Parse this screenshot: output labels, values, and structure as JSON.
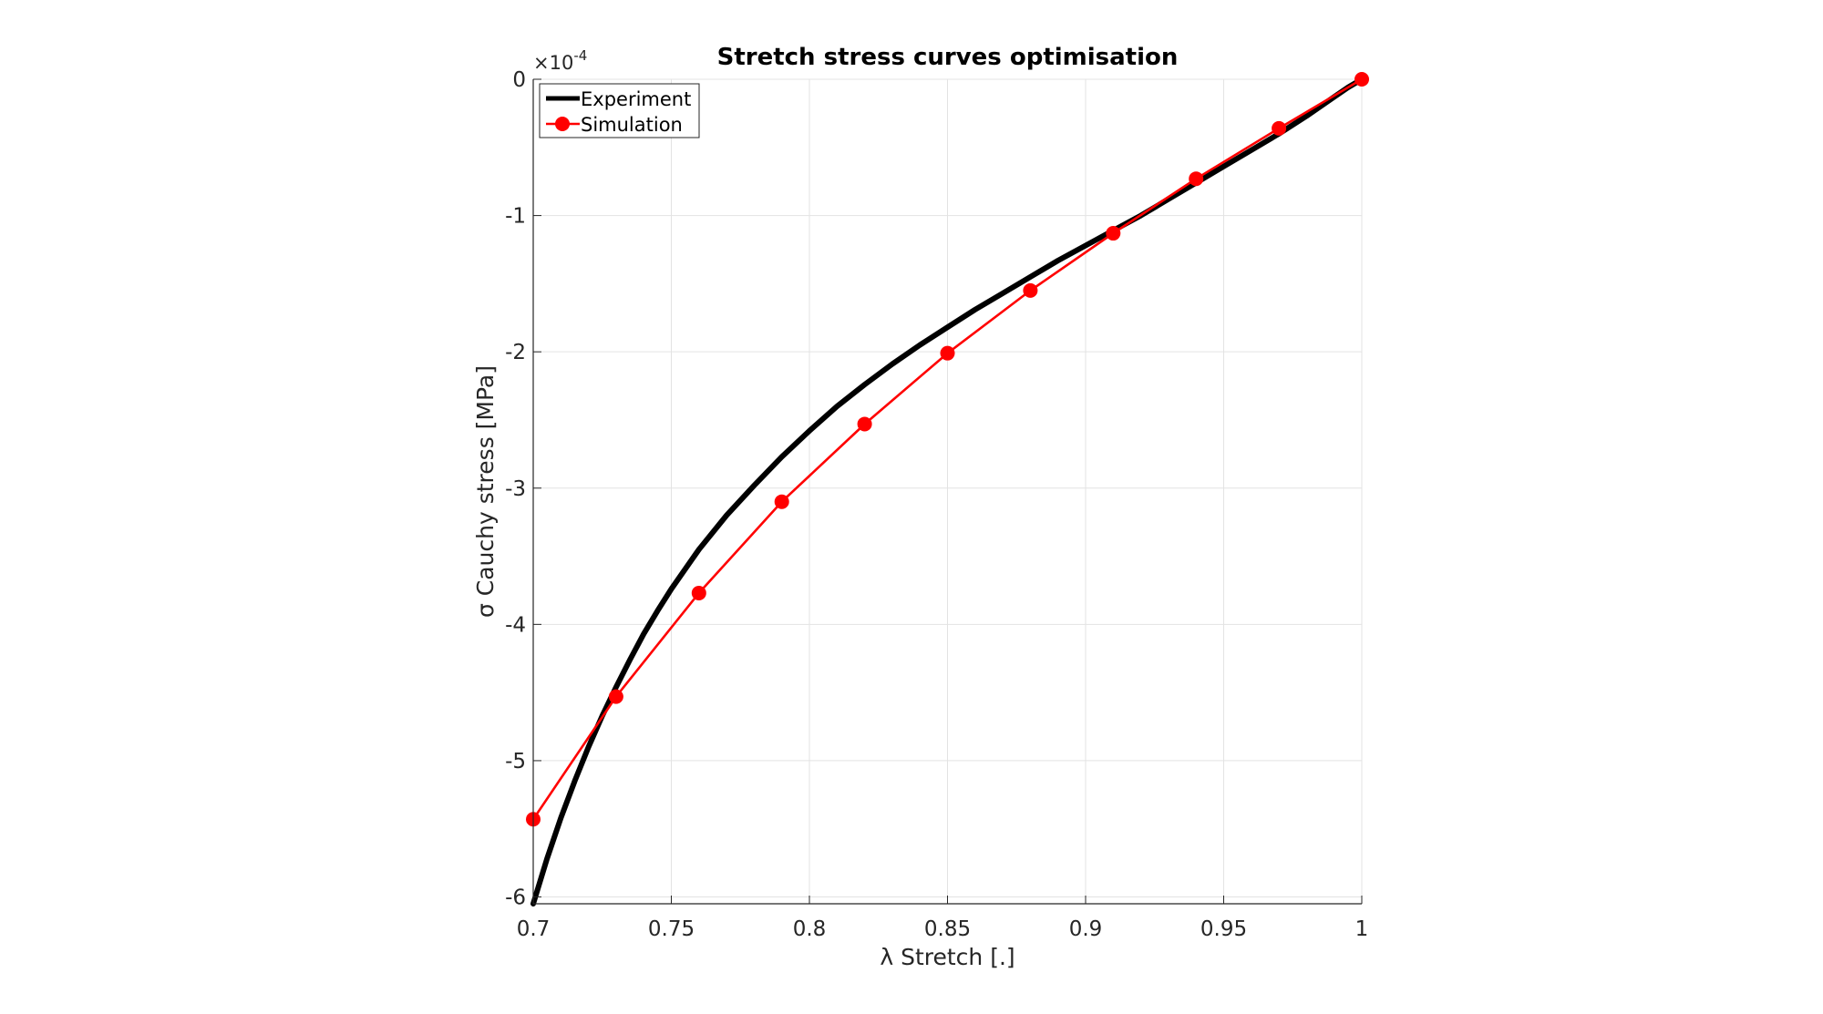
{
  "chart_data": {
    "type": "line",
    "title": "Stretch stress curves optimisation",
    "xlabel": "λ Stretch [.]",
    "ylabel": "σ Cauchy stress [MPa]",
    "y_exponent_label": "×10",
    "y_exponent_power": "-4",
    "y_multiplier": 0.0001,
    "xlim": [
      0.7,
      1.0
    ],
    "ylim": [
      -6.05,
      0
    ],
    "x_ticks": [
      0.7,
      0.75,
      0.8,
      0.85,
      0.9,
      0.95,
      1.0
    ],
    "x_tick_labels": [
      "0.7",
      "0.75",
      "0.8",
      "0.85",
      "0.9",
      "0.95",
      "1"
    ],
    "y_ticks": [
      0,
      -1,
      -2,
      -3,
      -4,
      -5,
      -6
    ],
    "y_tick_labels": [
      "0",
      "-1",
      "-2",
      "-3",
      "-4",
      "-5",
      "-6"
    ],
    "grid": true,
    "legend_position": "top-left",
    "series": [
      {
        "name": "Experiment",
        "color": "#000000",
        "marker": "none",
        "x": [
          0.7,
          0.705,
          0.71,
          0.715,
          0.72,
          0.725,
          0.73,
          0.735,
          0.74,
          0.745,
          0.75,
          0.76,
          0.77,
          0.78,
          0.79,
          0.8,
          0.81,
          0.82,
          0.83,
          0.84,
          0.85,
          0.86,
          0.87,
          0.88,
          0.89,
          0.9,
          0.91,
          0.92,
          0.93,
          0.94,
          0.95,
          0.96,
          0.97,
          0.98,
          0.99,
          0.995,
          1.0
        ],
        "y": [
          -6.05,
          -5.72,
          -5.42,
          -5.15,
          -4.9,
          -4.67,
          -4.46,
          -4.26,
          -4.07,
          -3.9,
          -3.74,
          -3.45,
          -3.2,
          -2.98,
          -2.77,
          -2.58,
          -2.4,
          -2.24,
          -2.09,
          -1.95,
          -1.82,
          -1.69,
          -1.57,
          -1.45,
          -1.33,
          -1.22,
          -1.11,
          -1.0,
          -0.88,
          -0.76,
          -0.64,
          -0.52,
          -0.4,
          -0.27,
          -0.13,
          -0.06,
          0.0
        ]
      },
      {
        "name": "Simulation",
        "color": "#ff0000",
        "marker": "circle",
        "x": [
          0.7,
          0.73,
          0.76,
          0.79,
          0.82,
          0.85,
          0.88,
          0.91,
          0.94,
          0.97,
          1.0
        ],
        "y": [
          -5.43,
          -4.53,
          -3.77,
          -3.1,
          -2.53,
          -2.01,
          -1.55,
          -1.13,
          -0.73,
          -0.36,
          0.0
        ]
      }
    ]
  }
}
